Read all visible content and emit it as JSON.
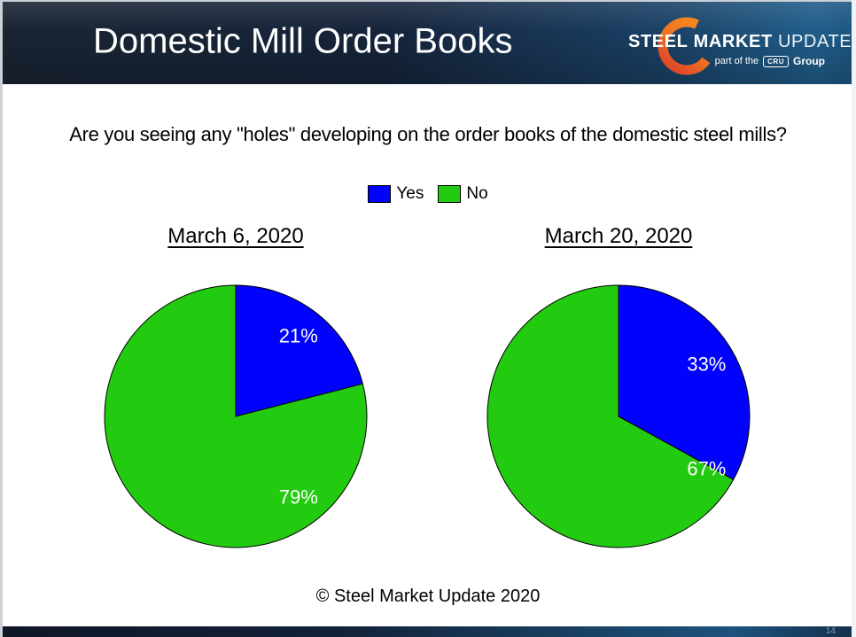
{
  "header": {
    "title": "Domestic Mill Order Books",
    "logo": {
      "word_steel": "STEEL",
      "word_market": "MARKET",
      "word_update": "UPDATE",
      "tagline_prefix": "part of the",
      "badge": "CRU",
      "tagline_suffix": "Group",
      "crescent_top_color": "#F6871F",
      "crescent_bottom_color": "#E04B28"
    }
  },
  "question": "Are you seeing any \"holes\" developing on the order books of the domestic steel mills?",
  "legend": {
    "items": [
      {
        "label": "Yes",
        "color": "#0101FE"
      },
      {
        "label": "No",
        "color": "#23CB10"
      }
    ]
  },
  "chart_data": [
    {
      "type": "pie",
      "title": "March 6, 2020",
      "labels": [
        "Yes",
        "No"
      ],
      "values": [
        21,
        79
      ],
      "data_labels": [
        "21%",
        "79%"
      ],
      "colors": [
        "#0101FE",
        "#23CB10"
      ],
      "start_angle_deg": 0,
      "direction": "clockwise",
      "legend_position": "top-shared",
      "label_color": "#FFFFFF"
    },
    {
      "type": "pie",
      "title": "March 20, 2020",
      "labels": [
        "Yes",
        "No"
      ],
      "values": [
        33,
        67
      ],
      "data_labels": [
        "33%",
        "67%"
      ],
      "colors": [
        "#0101FE",
        "#23CB10"
      ],
      "start_angle_deg": 0,
      "direction": "clockwise",
      "legend_position": "top-shared",
      "label_color": "#FFFFFF"
    }
  ],
  "footer": {
    "copyright": "© Steel Market Update 2020"
  },
  "page": {
    "number": "14"
  },
  "theme": {
    "header_gradient_left": "#1A2433",
    "header_gradient_right": "#1D5681",
    "slice_stroke": "#000000",
    "pie_label_color": "#FFFFFF"
  }
}
